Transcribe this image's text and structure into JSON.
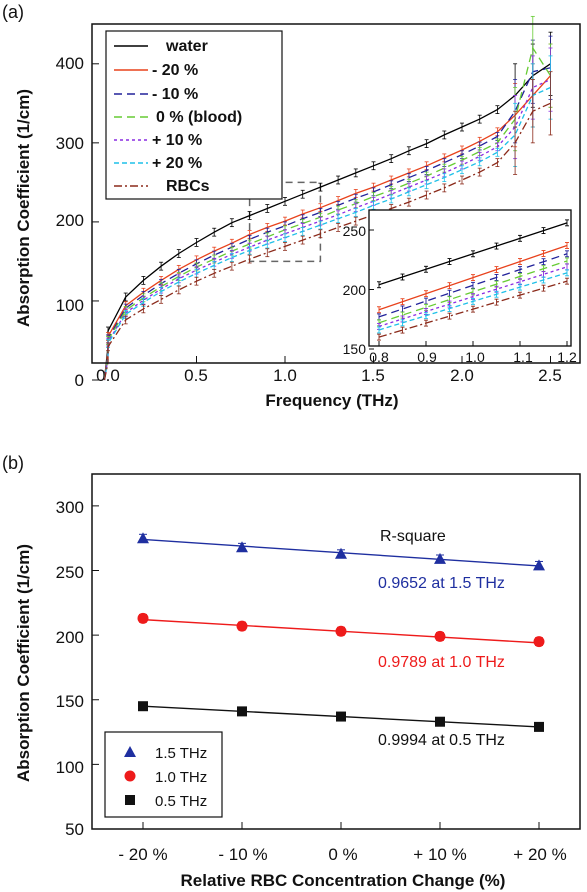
{
  "colors": {
    "water": "#000000",
    "m20": "#e8421c",
    "m10": "#22229a",
    "z0": "#66cc33",
    "p10": "#8a2be2",
    "p20": "#1ec0e8",
    "rbc": "#8b2a1a",
    "thz15": "#1f2fa0",
    "thz10": "#ee1b1b",
    "thz05": "#111111"
  },
  "chart_data": [
    {
      "type": "line",
      "panel_label": "(a)",
      "xlabel": "Frequency (THz)",
      "ylabel": "Absorption Coefficient (1/cm)",
      "xlim": [
        -0.05,
        2.55
      ],
      "ylim": [
        0,
        450
      ],
      "xticks": [
        "0.0",
        "0.5",
        "1.0",
        "1.5",
        "2.0",
        "2.5"
      ],
      "yticks": [
        "0",
        "100",
        "200",
        "300",
        "400"
      ],
      "legend_position": "top-left",
      "series": [
        {
          "name": "water",
          "color_key": "water",
          "dash": "solid",
          "x": [
            0.0,
            0.1,
            0.2,
            0.3,
            0.4,
            0.5,
            0.6,
            0.7,
            0.8,
            0.9,
            1.0,
            1.1,
            1.2,
            1.3,
            1.4,
            1.5,
            1.6,
            1.7,
            1.8,
            1.9,
            2.0,
            2.1,
            2.2,
            2.3,
            2.4,
            2.5
          ],
          "y": [
            62,
            105,
            126,
            144,
            160,
            174,
            187,
            199,
            208,
            217,
            226,
            235,
            244,
            253,
            262,
            271,
            280,
            290,
            299,
            310,
            320,
            330,
            342,
            360,
            385,
            400
          ]
        },
        {
          "name": "- 20 %",
          "color_key": "m20",
          "dash": "solid",
          "x": [
            0.0,
            0.1,
            0.2,
            0.3,
            0.4,
            0.5,
            0.6,
            0.7,
            0.8,
            0.9,
            1.0,
            1.1,
            1.2,
            1.3,
            1.4,
            1.5,
            1.6,
            1.7,
            1.8,
            1.9,
            2.0,
            2.1,
            2.2,
            2.3,
            2.4,
            2.5
          ],
          "y": [
            55,
            94,
            111,
            126,
            140,
            152,
            163,
            173,
            184,
            193,
            201,
            210,
            218,
            227,
            236,
            244,
            253,
            262,
            271,
            281,
            291,
            302,
            314,
            335,
            360,
            385
          ]
        },
        {
          "name": "- 10 %",
          "color_key": "m10",
          "dash": "8,5",
          "x": [
            0.0,
            0.1,
            0.2,
            0.3,
            0.4,
            0.5,
            0.6,
            0.7,
            0.8,
            0.9,
            1.0,
            1.1,
            1.2,
            1.3,
            1.4,
            1.5,
            1.6,
            1.7,
            1.8,
            1.9,
            2.0,
            2.1,
            2.2,
            2.3,
            2.4,
            2.5
          ],
          "y": [
            52,
            91,
            107,
            122,
            135,
            147,
            158,
            168,
            178,
            187,
            195,
            204,
            212,
            221,
            230,
            238,
            247,
            256,
            265,
            275,
            285,
            296,
            308,
            340,
            390,
            395
          ]
        },
        {
          "name": "0 % (blood)",
          "color_key": "z0",
          "dash": "8,5",
          "x": [
            0.0,
            0.1,
            0.2,
            0.3,
            0.4,
            0.5,
            0.6,
            0.7,
            0.8,
            0.9,
            1.0,
            1.1,
            1.2,
            1.3,
            1.4,
            1.5,
            1.6,
            1.7,
            1.8,
            1.9,
            2.0,
            2.1,
            2.2,
            2.3,
            2.4,
            2.5
          ],
          "y": [
            50,
            88,
            104,
            118,
            131,
            143,
            153,
            163,
            172,
            181,
            190,
            198,
            206,
            215,
            223,
            232,
            240,
            249,
            258,
            268,
            278,
            289,
            300,
            330,
            420,
            385
          ]
        },
        {
          "name": "+ 10 %",
          "color_key": "p10",
          "dash": "3,3",
          "x": [
            0.0,
            0.1,
            0.2,
            0.3,
            0.4,
            0.5,
            0.6,
            0.7,
            0.8,
            0.9,
            1.0,
            1.1,
            1.2,
            1.3,
            1.4,
            1.5,
            1.6,
            1.7,
            1.8,
            1.9,
            2.0,
            2.1,
            2.2,
            2.3,
            2.4,
            2.5
          ],
          "y": [
            48,
            85,
            101,
            115,
            128,
            139,
            149,
            159,
            168,
            177,
            185,
            193,
            201,
            209,
            218,
            226,
            235,
            244,
            253,
            262,
            272,
            283,
            295,
            320,
            370,
            380
          ]
        },
        {
          "name": "+ 20 %",
          "color_key": "p20",
          "dash": "5,3",
          "x": [
            0.0,
            0.1,
            0.2,
            0.3,
            0.4,
            0.5,
            0.6,
            0.7,
            0.8,
            0.9,
            1.0,
            1.1,
            1.2,
            1.3,
            1.4,
            1.5,
            1.6,
            1.7,
            1.8,
            1.9,
            2.0,
            2.1,
            2.2,
            2.3,
            2.4,
            2.5
          ],
          "y": [
            46,
            83,
            98,
            112,
            124,
            135,
            145,
            155,
            164,
            172,
            180,
            188,
            196,
            204,
            212,
            221,
            229,
            238,
            247,
            256,
            266,
            276,
            288,
            310,
            360,
            370
          ]
        },
        {
          "name": "RBCs",
          "color_key": "rbc",
          "dash": "8,3,2,3",
          "x": [
            0.0,
            0.1,
            0.2,
            0.3,
            0.4,
            0.5,
            0.6,
            0.7,
            0.8,
            0.9,
            1.0,
            1.1,
            1.2,
            1.3,
            1.4,
            1.5,
            1.6,
            1.7,
            1.8,
            1.9,
            2.0,
            2.1,
            2.2,
            2.3,
            2.4,
            2.5
          ],
          "y": [
            42,
            76,
            90,
            102,
            114,
            125,
            135,
            144,
            153,
            161,
            169,
            177,
            185,
            193,
            201,
            209,
            217,
            225,
            234,
            243,
            253,
            263,
            275,
            300,
            340,
            350
          ]
        }
      ],
      "inset": {
        "xlim": [
          0.78,
          1.2
        ],
        "ylim": [
          148,
          262
        ],
        "xticks": [
          "0.8",
          "0.9",
          "1.0",
          "1.1",
          "1.2"
        ],
        "yticks": [
          "150",
          "200",
          "250"
        ],
        "zoom_box_x": [
          0.8,
          1.2
        ],
        "zoom_box_y": [
          150,
          250
        ]
      }
    },
    {
      "type": "scatter",
      "panel_label": "(b)",
      "xlabel": "Relative RBC Concentration Change (%)",
      "ylabel": "Absorption Coefficient (1/cm)",
      "categories": [
        "- 20 %",
        "- 10 %",
        "0 %",
        "+ 10 %",
        "+ 20 %"
      ],
      "ylim": [
        50,
        325
      ],
      "yticks": [
        "50",
        "100",
        "150",
        "200",
        "250",
        "300"
      ],
      "legend_position": "bottom-left",
      "annotation_title": "R-square",
      "series": [
        {
          "name": "1.5 THz",
          "color_key": "thz15",
          "marker": "triangle",
          "values": [
            275,
            268,
            263,
            259,
            254
          ],
          "fit": [
            274,
            269.5,
            264,
            259,
            253.5
          ],
          "r2_label": "0.9652 at 1.5 THz"
        },
        {
          "name": "1.0 THz",
          "color_key": "thz10",
          "marker": "circle",
          "values": [
            213,
            207,
            203,
            199,
            195
          ],
          "fit": [
            212,
            207.5,
            203,
            198.5,
            194
          ],
          "r2_label": "0.9789 at 1.0 THz"
        },
        {
          "name": "0.5 THz",
          "color_key": "thz05",
          "marker": "square",
          "values": [
            145,
            141,
            137,
            133,
            129
          ],
          "fit": [
            145,
            141,
            137,
            133,
            129
          ],
          "r2_label": "0.9994 at 0.5 THz"
        }
      ]
    }
  ]
}
